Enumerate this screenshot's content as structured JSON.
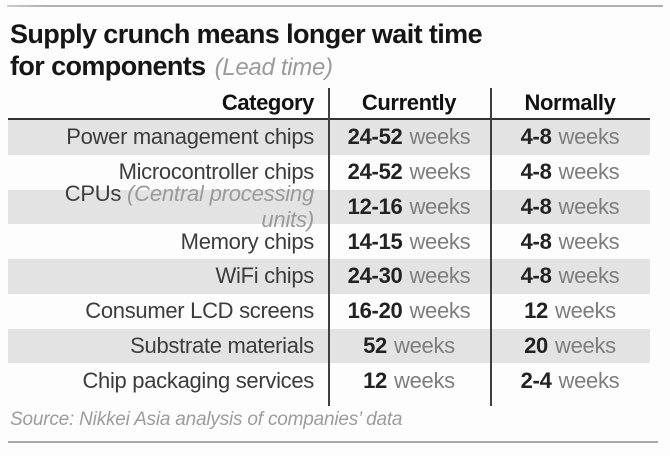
{
  "title": {
    "line1": "Supply crunch means longer wait time",
    "line2": "for components",
    "note": "(Lead time)"
  },
  "source": "Source: Nikkei Asia analysis of companies’ data",
  "colors": {
    "stripe": "#e3e3e3",
    "divider": "#3f3f3f",
    "value_text": "#222222",
    "unit_text": "#7d7d7d",
    "muted_text": "#9a9a9a",
    "top_rule": "#b0b0b0",
    "bottom_rule": "#a9a9a9"
  },
  "chart_data": {
    "type": "table",
    "title": "Supply crunch means longer wait time for components",
    "subtitle": "(Lead time)",
    "columns": [
      "Category",
      "Currently",
      "Normally"
    ],
    "rows": [
      {
        "category": "Power management chips",
        "category_note": "",
        "currently": {
          "value": "24-52",
          "unit": "weeks"
        },
        "normally": {
          "value": "4-8",
          "unit": "weeks"
        }
      },
      {
        "category": "Microcontroller chips",
        "category_note": "",
        "currently": {
          "value": "24-52",
          "unit": "weeks"
        },
        "normally": {
          "value": "4-8",
          "unit": "weeks"
        }
      },
      {
        "category": "CPUs",
        "category_note": "(Central processing units)",
        "currently": {
          "value": "12-16",
          "unit": "weeks"
        },
        "normally": {
          "value": "4-8",
          "unit": "weeks"
        }
      },
      {
        "category": "Memory chips",
        "category_note": "",
        "currently": {
          "value": "14-15",
          "unit": "weeks"
        },
        "normally": {
          "value": "4-8",
          "unit": "weeks"
        }
      },
      {
        "category": "WiFi chips",
        "category_note": "",
        "currently": {
          "value": "24-30",
          "unit": "weeks"
        },
        "normally": {
          "value": "4-8",
          "unit": "weeks"
        }
      },
      {
        "category": "Consumer LCD screens",
        "category_note": "",
        "currently": {
          "value": "16-20",
          "unit": "weeks"
        },
        "normally": {
          "value": "12",
          "unit": "weeks"
        }
      },
      {
        "category": "Substrate materials",
        "category_note": "",
        "currently": {
          "value": "52",
          "unit": "weeks"
        },
        "normally": {
          "value": "20",
          "unit": "weeks"
        }
      },
      {
        "category": "Chip packaging services",
        "category_note": "",
        "currently": {
          "value": "12",
          "unit": "weeks"
        },
        "normally": {
          "value": "2-4",
          "unit": "weeks"
        }
      }
    ],
    "source": "Source: Nikkei Asia analysis of companies’ data",
    "layout": {
      "stripe_rows": "odd",
      "category_align": "right",
      "value_align": "center",
      "grid": "vertical-dividers-only"
    }
  }
}
